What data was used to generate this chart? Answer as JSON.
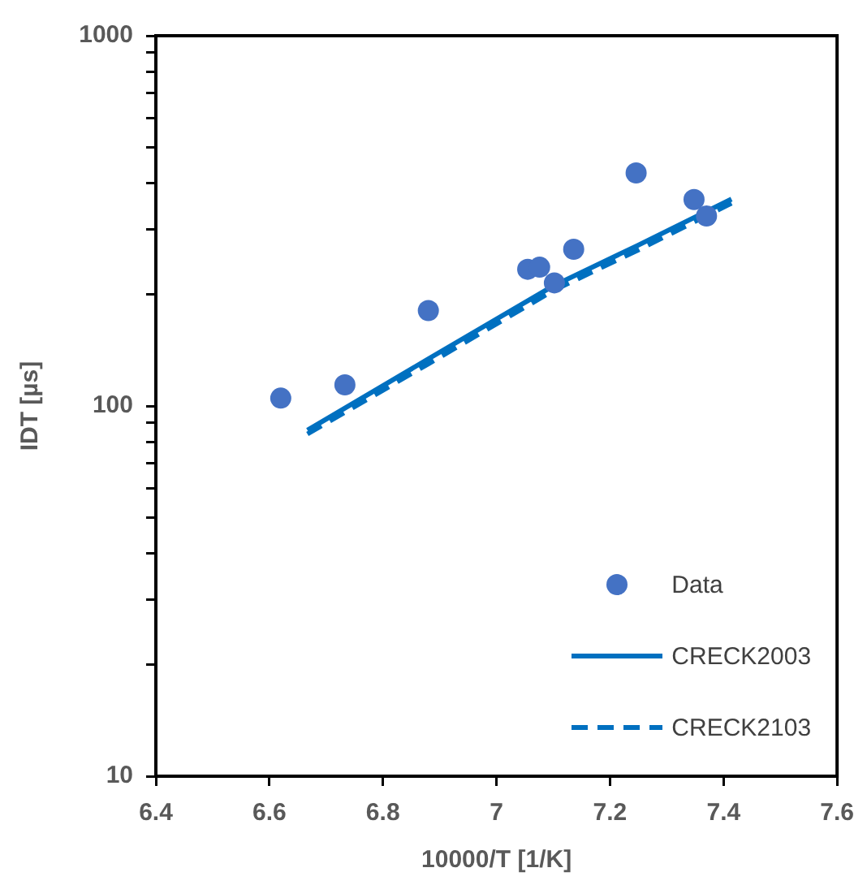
{
  "chart_data": {
    "type": "scatter",
    "xlabel": "10000/T [1/K]",
    "ylabel": "IDT [µs]",
    "log": "y",
    "grid": false,
    "legend": "bottom right",
    "xlim": [
      6.4,
      7.6
    ],
    "xticks": [
      6.4,
      6.6,
      6.8,
      7,
      7.2,
      7.4,
      7.6
    ],
    "ylim": [
      10,
      1000
    ],
    "yticks": [
      10,
      {
        "value": 20,
        "label": null
      },
      {
        "value": 30,
        "label": null
      },
      {
        "value": 40,
        "label": null
      },
      {
        "value": 50,
        "label": null
      },
      {
        "value": 60,
        "label": null
      },
      {
        "value": 70,
        "label": null
      },
      {
        "value": 80,
        "label": null
      },
      {
        "value": 90,
        "label": null
      },
      100,
      {
        "value": 200,
        "label": null
      },
      {
        "value": 300,
        "label": null
      },
      {
        "value": 400,
        "label": null
      },
      {
        "value": 500,
        "label": null
      },
      {
        "value": 600,
        "label": null
      },
      {
        "value": 700,
        "label": null
      },
      {
        "value": 800,
        "label": null
      },
      {
        "value": 900,
        "label": null
      },
      1000
    ],
    "series": [
      {
        "name": "Data",
        "marker": "circle",
        "color": "#4472c4",
        "x": [
          6.62,
          6.733,
          6.88,
          7.055,
          7.076,
          7.102,
          7.136,
          7.246,
          7.348,
          7.37
        ],
        "values": [
          105,
          114,
          181,
          234,
          237,
          215,
          265,
          426,
          361,
          326
        ]
      },
      {
        "name": "CRECK2003",
        "type": "line",
        "marker": "none",
        "line_style": "solid",
        "color": "#0070c0",
        "x": [
          6.667,
          6.88,
          7.1,
          7.25,
          7.414
        ],
        "values": [
          86,
          134,
          211,
          272,
          362
        ]
      },
      {
        "name": "CRECK2103",
        "type": "line",
        "marker": "none",
        "line_style": "dashed",
        "color": "#0070c0",
        "x": [
          6.667,
          6.88,
          7.1,
          7.25,
          7.414
        ],
        "values": [
          84,
          130,
          205,
          264,
          353
        ]
      }
    ]
  }
}
